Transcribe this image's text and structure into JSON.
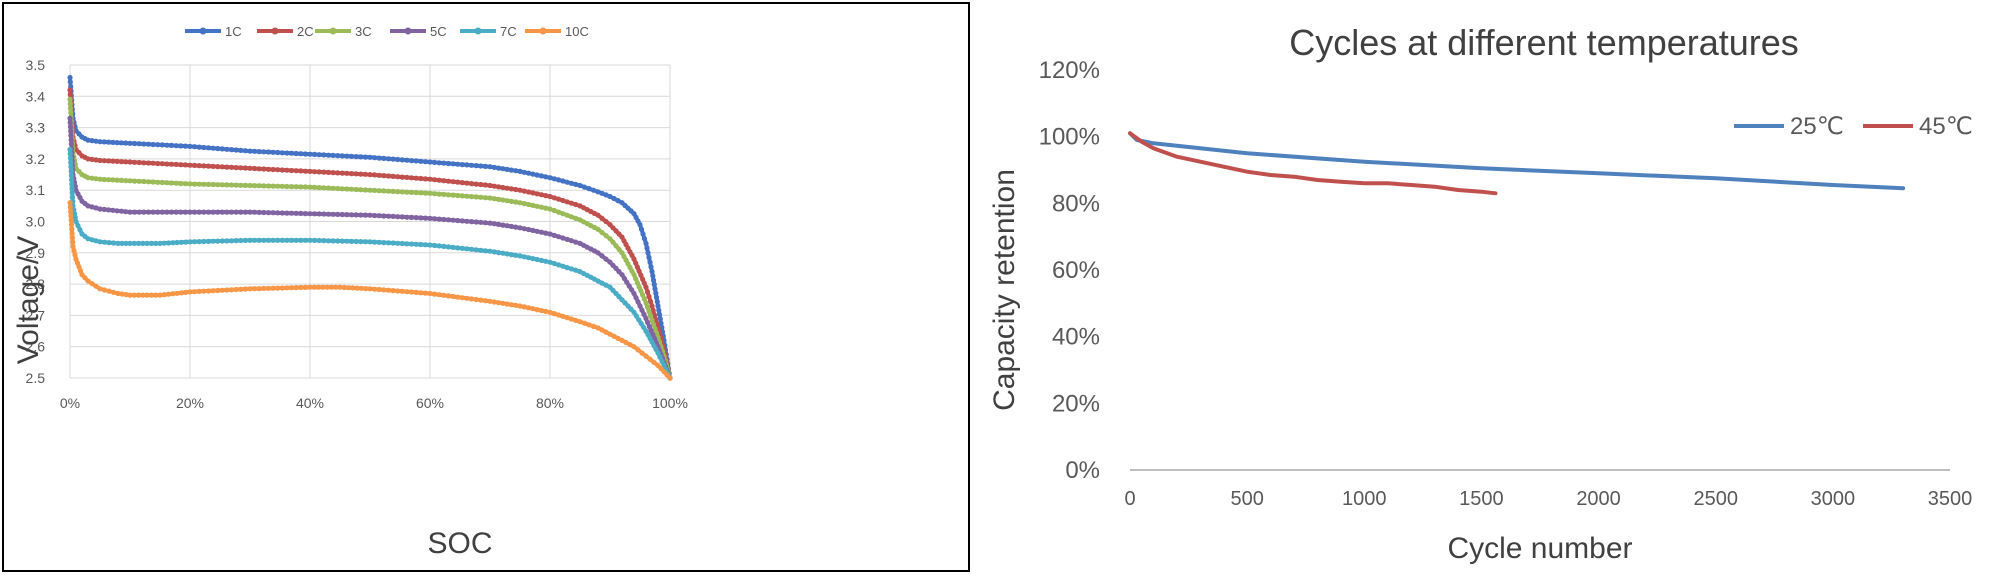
{
  "chart_data": [
    {
      "type": "line",
      "title": "",
      "xlabel": "SOC",
      "ylabel": "Voltage/V",
      "xlim": [
        0,
        100
      ],
      "ylim": [
        2.5,
        3.5
      ],
      "x_ticks": [
        "0%",
        "20%",
        "40%",
        "60%",
        "80%",
        "100%"
      ],
      "y_ticks": [
        "2.5",
        "2.6",
        "2.7",
        "2.8",
        "2.9",
        "3.0",
        "3.1",
        "3.2",
        "3.3",
        "3.4",
        "3.5"
      ],
      "grid": true,
      "legend_position": "top",
      "markers": true,
      "series": [
        {
          "name": "1C",
          "color": "#4472c4",
          "points": [
            [
              0,
              3.46
            ],
            [
              0.5,
              3.33
            ],
            [
              1,
              3.29
            ],
            [
              2,
              3.27
            ],
            [
              3,
              3.26
            ],
            [
              5,
              3.255
            ],
            [
              10,
              3.25
            ],
            [
              20,
              3.24
            ],
            [
              30,
              3.225
            ],
            [
              40,
              3.215
            ],
            [
              50,
              3.205
            ],
            [
              60,
              3.19
            ],
            [
              70,
              3.175
            ],
            [
              75,
              3.16
            ],
            [
              80,
              3.14
            ],
            [
              85,
              3.115
            ],
            [
              88,
              3.095
            ],
            [
              90,
              3.08
            ],
            [
              92,
              3.06
            ],
            [
              94,
              3.025
            ],
            [
              95,
              2.99
            ],
            [
              96,
              2.93
            ],
            [
              97,
              2.84
            ],
            [
              98,
              2.73
            ],
            [
              99,
              2.62
            ],
            [
              100,
              2.5
            ]
          ]
        },
        {
          "name": "2C",
          "color": "#c0504d",
          "points": [
            [
              0,
              3.42
            ],
            [
              0.5,
              3.27
            ],
            [
              1,
              3.23
            ],
            [
              2,
              3.21
            ],
            [
              3,
              3.2
            ],
            [
              5,
              3.195
            ],
            [
              10,
              3.19
            ],
            [
              20,
              3.18
            ],
            [
              30,
              3.17
            ],
            [
              40,
              3.16
            ],
            [
              50,
              3.15
            ],
            [
              60,
              3.135
            ],
            [
              70,
              3.115
            ],
            [
              75,
              3.1
            ],
            [
              80,
              3.08
            ],
            [
              85,
              3.05
            ],
            [
              88,
              3.02
            ],
            [
              90,
              2.99
            ],
            [
              92,
              2.95
            ],
            [
              94,
              2.88
            ],
            [
              96,
              2.79
            ],
            [
              97,
              2.73
            ],
            [
              98,
              2.66
            ],
            [
              99,
              2.59
            ],
            [
              100,
              2.5
            ]
          ]
        },
        {
          "name": "3C",
          "color": "#9bbb59",
          "points": [
            [
              0,
              3.39
            ],
            [
              0.5,
              3.22
            ],
            [
              1,
              3.17
            ],
            [
              2,
              3.15
            ],
            [
              3,
              3.14
            ],
            [
              5,
              3.135
            ],
            [
              10,
              3.13
            ],
            [
              20,
              3.12
            ],
            [
              30,
              3.115
            ],
            [
              40,
              3.11
            ],
            [
              50,
              3.1
            ],
            [
              60,
              3.09
            ],
            [
              70,
              3.075
            ],
            [
              75,
              3.06
            ],
            [
              80,
              3.04
            ],
            [
              85,
              3.005
            ],
            [
              88,
              2.975
            ],
            [
              90,
              2.945
            ],
            [
              92,
              2.9
            ],
            [
              94,
              2.83
            ],
            [
              96,
              2.74
            ],
            [
              98,
              2.63
            ],
            [
              99,
              2.57
            ],
            [
              100,
              2.5
            ]
          ]
        },
        {
          "name": "5C",
          "color": "#8064a2",
          "points": [
            [
              0,
              3.33
            ],
            [
              0.5,
              3.15
            ],
            [
              1,
              3.1
            ],
            [
              2,
              3.065
            ],
            [
              3,
              3.05
            ],
            [
              5,
              3.04
            ],
            [
              10,
              3.03
            ],
            [
              20,
              3.03
            ],
            [
              30,
              3.03
            ],
            [
              40,
              3.025
            ],
            [
              50,
              3.02
            ],
            [
              60,
              3.01
            ],
            [
              70,
              2.995
            ],
            [
              75,
              2.98
            ],
            [
              80,
              2.96
            ],
            [
              85,
              2.93
            ],
            [
              88,
              2.9
            ],
            [
              90,
              2.87
            ],
            [
              92,
              2.83
            ],
            [
              94,
              2.77
            ],
            [
              96,
              2.69
            ],
            [
              98,
              2.6
            ],
            [
              99,
              2.55
            ],
            [
              100,
              2.5
            ]
          ]
        },
        {
          "name": "7C",
          "color": "#4bacc6",
          "points": [
            [
              0,
              3.23
            ],
            [
              0.5,
              3.05
            ],
            [
              1,
              3.0
            ],
            [
              2,
              2.96
            ],
            [
              3,
              2.945
            ],
            [
              5,
              2.935
            ],
            [
              8,
              2.93
            ],
            [
              10,
              2.93
            ],
            [
              15,
              2.93
            ],
            [
              20,
              2.935
            ],
            [
              30,
              2.94
            ],
            [
              40,
              2.94
            ],
            [
              50,
              2.935
            ],
            [
              60,
              2.925
            ],
            [
              70,
              2.905
            ],
            [
              75,
              2.89
            ],
            [
              80,
              2.87
            ],
            [
              85,
              2.84
            ],
            [
              88,
              2.81
            ],
            [
              90,
              2.79
            ],
            [
              92,
              2.75
            ],
            [
              94,
              2.71
            ],
            [
              96,
              2.65
            ],
            [
              98,
              2.58
            ],
            [
              100,
              2.5
            ]
          ]
        },
        {
          "name": "10C",
          "color": "#f79646",
          "points": [
            [
              0,
              3.06
            ],
            [
              0.5,
              2.92
            ],
            [
              1,
              2.88
            ],
            [
              2,
              2.83
            ],
            [
              3,
              2.81
            ],
            [
              5,
              2.785
            ],
            [
              8,
              2.77
            ],
            [
              10,
              2.765
            ],
            [
              15,
              2.765
            ],
            [
              20,
              2.775
            ],
            [
              30,
              2.785
            ],
            [
              40,
              2.79
            ],
            [
              45,
              2.79
            ],
            [
              50,
              2.785
            ],
            [
              60,
              2.77
            ],
            [
              70,
              2.745
            ],
            [
              75,
              2.73
            ],
            [
              80,
              2.71
            ],
            [
              85,
              2.68
            ],
            [
              88,
              2.66
            ],
            [
              90,
              2.64
            ],
            [
              92,
              2.62
            ],
            [
              94,
              2.6
            ],
            [
              96,
              2.57
            ],
            [
              98,
              2.54
            ],
            [
              100,
              2.5
            ]
          ]
        }
      ]
    },
    {
      "type": "line",
      "title": "Cycles at different temperatures",
      "xlabel": "Cycle number",
      "ylabel": "Capacity retention",
      "xlim": [
        0,
        3500
      ],
      "ylim": [
        0,
        120
      ],
      "x_ticks": [
        "0",
        "500",
        "1000",
        "1500",
        "2000",
        "2500",
        "3000",
        "3500"
      ],
      "y_ticks": [
        "0%",
        "20%",
        "40%",
        "60%",
        "80%",
        "100%",
        "120%"
      ],
      "grid": false,
      "legend_position": "top-right",
      "markers": false,
      "series": [
        {
          "name": "25℃",
          "color": "#4f81bd",
          "points": [
            [
              0,
              101
            ],
            [
              30,
              99
            ],
            [
              100,
              98
            ],
            [
              500,
              95
            ],
            [
              1000,
              92.5
            ],
            [
              1500,
              90.5
            ],
            [
              2000,
              89
            ],
            [
              2500,
              87.5
            ],
            [
              3000,
              85.5
            ],
            [
              3300,
              84.5
            ]
          ]
        },
        {
          "name": "45℃",
          "color": "#c0504d",
          "points": [
            [
              0,
              101
            ],
            [
              50,
              98.5
            ],
            [
              100,
              96.5
            ],
            [
              200,
              94
            ],
            [
              300,
              92.5
            ],
            [
              400,
              91
            ],
            [
              500,
              89.5
            ],
            [
              600,
              88.5
            ],
            [
              700,
              88
            ],
            [
              800,
              87
            ],
            [
              900,
              86.5
            ],
            [
              1000,
              86
            ],
            [
              1100,
              86
            ],
            [
              1200,
              85.5
            ],
            [
              1300,
              85
            ],
            [
              1400,
              84
            ],
            [
              1500,
              83.5
            ],
            [
              1560,
              83
            ]
          ]
        }
      ]
    }
  ]
}
